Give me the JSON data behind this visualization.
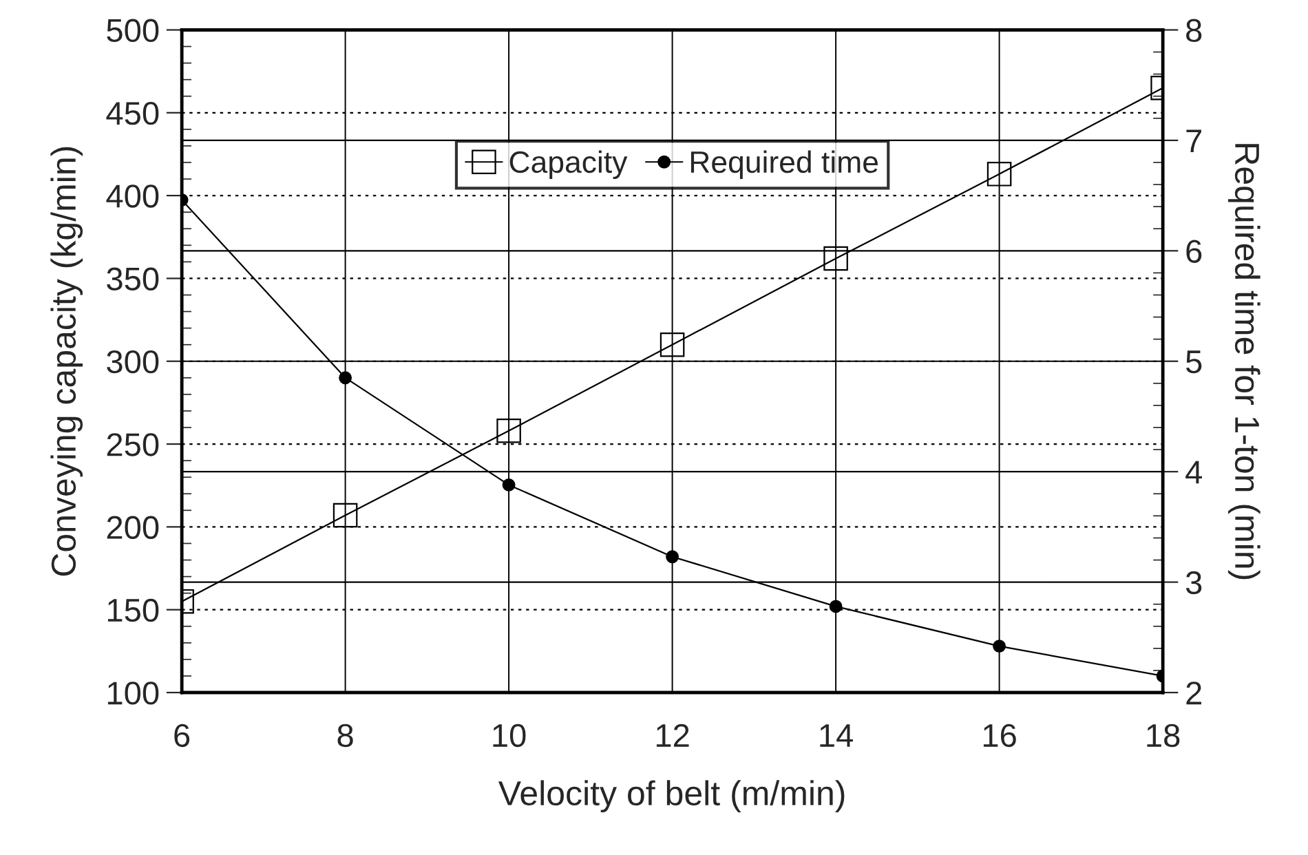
{
  "chart_data": {
    "type": "line",
    "xlabel": "Velocity of belt (m/min)",
    "ylabel": "Conveying capacity (kg/min)",
    "y2label": "Required time for 1-ton (min)",
    "x": [
      6,
      8,
      10,
      12,
      14,
      16,
      18
    ],
    "series": [
      {
        "name": "Capacity",
        "color": "#000000",
        "marker": "square",
        "values": [
          155,
          207,
          258,
          310,
          362,
          413,
          465
        ]
      },
      {
        "name": "Required time",
        "color": "#000000",
        "marker": "circle",
        "axis": "y2",
        "values": [
          6.46,
          4.85,
          3.88,
          3.23,
          2.78,
          2.42,
          2.15
        ]
      }
    ],
    "xlim": [
      6,
      18
    ],
    "xticks": [
      6,
      8,
      10,
      12,
      14,
      16,
      18
    ],
    "ylim": [
      100,
      500
    ],
    "yticks": [
      100,
      150,
      200,
      250,
      300,
      350,
      400,
      450,
      500
    ],
    "y2lim": [
      2,
      8
    ],
    "y2ticks": [
      2,
      3,
      4,
      5,
      6,
      7,
      8
    ],
    "grid": true,
    "legend": "top",
    "line_style": "solid"
  }
}
